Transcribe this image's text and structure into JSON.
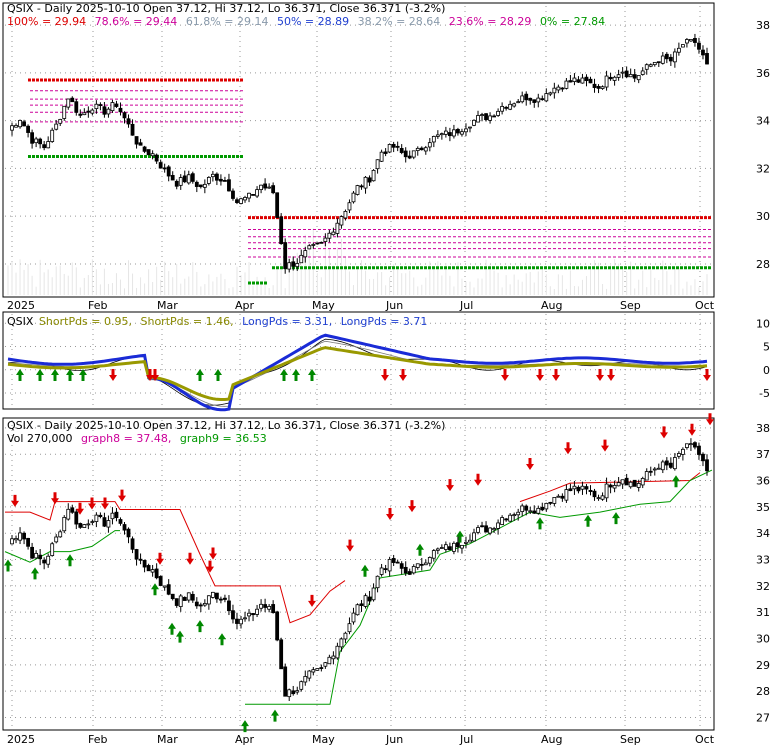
{
  "colors": {
    "up": "#000000",
    "down": "#000000",
    "fib_red": "#dd0000",
    "fib_green": "#009900",
    "fib_mid": "#cc0099",
    "short_line": "#999900",
    "long_line": "#1a2bd6",
    "signal_up": "#008800",
    "signal_down": "#dd0000",
    "stop_red": "#dd0000",
    "stop_green": "#009900",
    "label_gray": "#888888",
    "label_olive": "#888800",
    "label_blue": "#1f3fd0"
  },
  "panel1": {
    "title": "QSIX - Daily 2025-10-10 Open 37.12, Hi 37.12, Lo 36.371, Close 36.371 (-3.2%)",
    "fib_labels": [
      {
        "text": "100% = 29.94",
        "color": "#dd0000"
      },
      {
        "text": "78.6% = 29.44",
        "color": "#cc0099"
      },
      {
        "text": "61.8% = 29.14",
        "color": "#8899aa"
      },
      {
        "text": "50% = 28.89",
        "color": "#1f3fd0"
      },
      {
        "text": "38.2% = 28.64",
        "color": "#8899aa"
      },
      {
        "text": "23.6% = 28.29",
        "color": "#cc0099"
      },
      {
        "text": "0% = 27.84",
        "color": "#009900"
      }
    ],
    "y_ticks": [
      "38",
      "36",
      "34",
      "32",
      "30",
      "28"
    ]
  },
  "panel2": {
    "labels": [
      {
        "text": "QSIX",
        "color": "#000000"
      },
      {
        "text": "ShortPds = 0.95,",
        "color": "#888800"
      },
      {
        "text": "ShortPds = 1.46,",
        "color": "#888800"
      },
      {
        "text": "LongPds = 3.31,",
        "color": "#1f3fd0"
      },
      {
        "text": "LongPds = 3.71",
        "color": "#1f3fd0"
      }
    ],
    "y_ticks": [
      "10",
      "5",
      "0",
      "-5"
    ]
  },
  "panel3": {
    "title": "QSIX - Daily 2025-10-10 Open 37.12, Hi 37.12, Lo 36.371, Close 36.371 (-3.2%)",
    "vol_label": "Vol 270,000",
    "graph8_label": "graph8 = 37.48,",
    "graph9_label": "graph9 = 36.53",
    "y_ticks": [
      "38",
      "37",
      "36",
      "35",
      "34",
      "33",
      "32",
      "31",
      "30",
      "29",
      "28",
      "27"
    ]
  },
  "x_ticks": [
    "2025",
    "Feb",
    "Mar",
    "Apr",
    "May",
    "Jun",
    "Jul",
    "Aug",
    "Sep",
    "Oct"
  ],
  "chart_data": {
    "type": "candlestick",
    "dates": [
      "2025-01-02",
      "2025-01-06",
      "2025-01-09",
      "2025-01-13",
      "2025-01-16",
      "2025-01-21",
      "2025-01-24",
      "2025-01-29",
      "2025-02-03",
      "2025-02-06",
      "2025-02-11",
      "2025-02-14",
      "2025-02-19",
      "2025-02-24",
      "2025-02-27",
      "2025-03-04",
      "2025-03-07",
      "2025-03-12",
      "2025-03-17",
      "2025-03-20",
      "2025-03-25",
      "2025-03-28",
      "2025-04-02",
      "2025-04-07",
      "2025-04-10",
      "2025-04-15",
      "2025-04-21",
      "2025-04-25",
      "2025-04-30",
      "2025-05-05",
      "2025-05-09",
      "2025-05-14",
      "2025-05-19",
      "2025-05-23",
      "2025-05-29",
      "2025-06-04",
      "2025-06-10",
      "2025-06-16",
      "2025-06-20",
      "2025-06-26",
      "2025-07-02",
      "2025-07-09",
      "2025-07-15",
      "2025-07-21",
      "2025-07-25",
      "2025-07-31",
      "2025-08-06",
      "2025-08-12",
      "2025-08-18",
      "2025-08-22",
      "2025-08-28",
      "2025-09-04",
      "2025-09-10",
      "2025-09-16",
      "2025-09-22",
      "2025-09-26",
      "2025-10-02",
      "2025-10-08",
      "2025-10-10"
    ],
    "close": [
      33.6,
      34.1,
      33.2,
      32.9,
      33.8,
      35.0,
      34.2,
      34.6,
      34.4,
      34.7,
      33.8,
      32.8,
      32.6,
      31.9,
      31.4,
      31.6,
      31.2,
      31.7,
      31.5,
      30.6,
      30.8,
      31.3,
      31.0,
      27.9,
      28.1,
      28.6,
      28.8,
      29.5,
      30.3,
      31.2,
      31.6,
      32.7,
      32.9,
      32.5,
      32.7,
      33.2,
      33.4,
      33.5,
      33.8,
      34.1,
      34.2,
      34.6,
      34.8,
      35.0,
      34.9,
      35.3,
      35.5,
      35.7,
      35.6,
      35.4,
      35.9,
      36.1,
      35.8,
      36.2,
      36.6,
      36.5,
      37.2,
      37.3,
      36.371
    ],
    "fibonacci": {
      "100%": 29.94,
      "78.6%": 29.44,
      "61.8%": 29.14,
      "50%": 28.89,
      "38.2%": 28.64,
      "23.6%": 28.29,
      "0%": 27.84
    },
    "indicator": {
      "ShortPds": [
        0.95,
        1.46
      ],
      "LongPds": [
        3.31,
        3.71
      ]
    },
    "graph8": 37.48,
    "graph9": 36.53,
    "volume_last": 270000,
    "ylim_price": [
      27,
      38.5
    ],
    "ylim_indicator": [
      -8,
      12
    ]
  }
}
